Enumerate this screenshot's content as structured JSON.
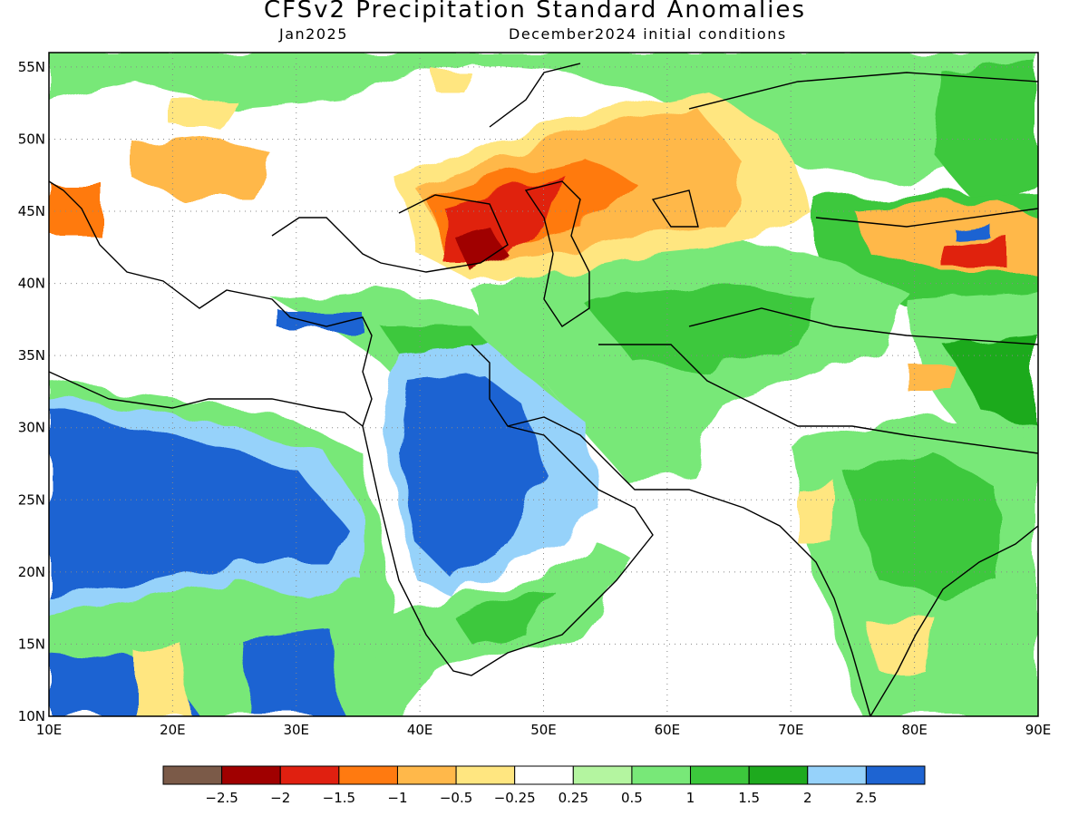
{
  "title": "CFSv2 Precipitation Standard Anomalies",
  "subtitle_left": "Jan2025",
  "subtitle_right": "December2024 initial conditions",
  "lon_ticks": [
    "10E",
    "20E",
    "30E",
    "40E",
    "50E",
    "60E",
    "70E",
    "80E",
    "90E"
  ],
  "lat_ticks": [
    "55N",
    "50N",
    "45N",
    "40N",
    "35N",
    "30N",
    "25N",
    "20N",
    "15N",
    "10N"
  ],
  "map_extent": {
    "lon": [
      10,
      90
    ],
    "lat": [
      10,
      56
    ]
  },
  "colorbar": {
    "colors": [
      "#7b5a48",
      "#a00000",
      "#e02010",
      "#ff7a10",
      "#ffb84a",
      "#ffe680",
      "#ffffff",
      "#b4f5a0",
      "#78e878",
      "#3cc83c",
      "#1eaa1e",
      "#96d2fa",
      "#1e64d2"
    ],
    "labels": [
      "−2.5",
      "−2",
      "−1.5",
      "−1",
      "−0.5",
      "−0.25",
      "0.25",
      "0.5",
      "1",
      "1.5",
      "2",
      "2.5"
    ]
  }
}
